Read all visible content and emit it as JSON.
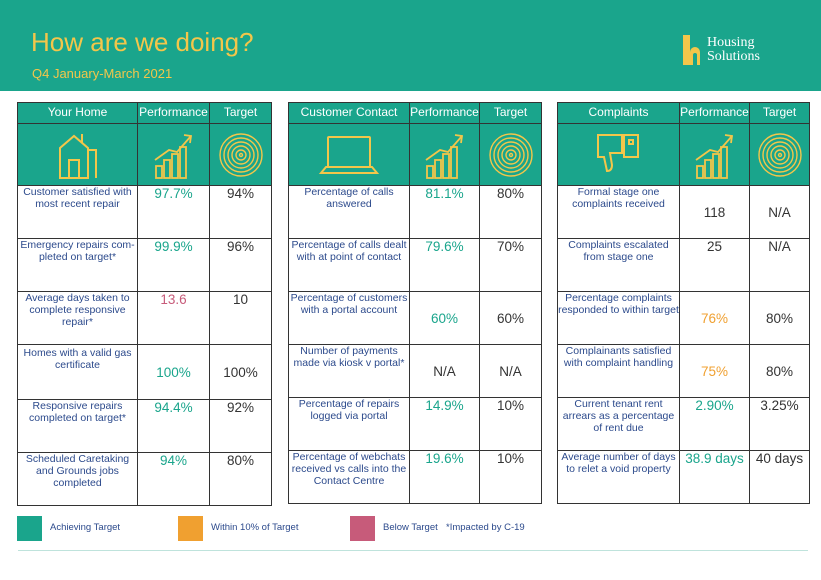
{
  "header": {
    "title": "How are we doing?",
    "subtitle": "Q4 January-March 2021",
    "logo_line1": "Housing",
    "logo_line2": "Solutions"
  },
  "colors": {
    "header_bg": "#1aa58c",
    "title": "#f3c64a",
    "achieving": "#1aa58c",
    "within10": "#f0a030",
    "below": "#c75b7a"
  },
  "tables": {
    "home": {
      "heading": "Your Home",
      "perf_heading": "Performance",
      "target_heading": "Target",
      "icon": "house-icon",
      "rows": [
        {
          "label": "Customer satisfied with most recent repair",
          "performance": "97.7%",
          "target": "94%",
          "status": "achieving"
        },
        {
          "label": "Emergency repairs com-pleted on target*",
          "performance": "99.9%",
          "target": "96%",
          "status": "achieving"
        },
        {
          "label": "Average days taken to complete responsive repair*",
          "performance": "13.6",
          "target": "10",
          "status": "below"
        },
        {
          "label": "Homes with a valid gas certificate",
          "performance": "100%",
          "target": "100%",
          "status": "achieving"
        },
        {
          "label": "Responsive repairs completed on target*",
          "performance": "94.4%",
          "target": "92%",
          "status": "achieving"
        },
        {
          "label": "Scheduled Caretaking and Grounds jobs completed",
          "performance": "94%",
          "target": "80%",
          "status": "achieving"
        }
      ]
    },
    "contact": {
      "heading": "Customer Contact",
      "perf_heading": "Performance",
      "target_heading": "Target",
      "icon": "laptop-icon",
      "rows": [
        {
          "label": "Percentage of calls answered",
          "performance": "81.1%",
          "target": "80%",
          "status": "achieving"
        },
        {
          "label": "Percentage of calls dealt with at point of contact",
          "performance": "79.6%",
          "target": "70%",
          "status": "achieving"
        },
        {
          "label": "Percentage of customers with a portal account",
          "performance": "60%",
          "target": "60%",
          "status": "achieving"
        },
        {
          "label": "Number of payments made via kiosk v portal*",
          "performance": "N/A",
          "target": "N/A",
          "status": "none"
        },
        {
          "label": "Percentage of repairs logged via portal",
          "performance": "14.9%",
          "target": "10%",
          "status": "achieving"
        },
        {
          "label": "Percentage of webchats received vs calls into the Contact Centre",
          "performance": "19.6%",
          "target": "10%",
          "status": "achieving"
        }
      ]
    },
    "complaints": {
      "heading": "Complaints",
      "perf_heading": "Performance",
      "target_heading": "Target",
      "icon": "thumbs-down-icon",
      "rows": [
        {
          "label": "Formal stage one complaints received",
          "performance": "118",
          "target": "N/A",
          "status": "none"
        },
        {
          "label": "Complaints escalated from stage one",
          "performance": "25",
          "target": "N/A",
          "status": "none"
        },
        {
          "label": "Percentage complaints responded to within target",
          "performance": "76%",
          "target": "80%",
          "status": "within10"
        },
        {
          "label": "Complainants satisfied with complaint handling",
          "performance": "75%",
          "target": "80%",
          "status": "within10"
        },
        {
          "label": "Current tenant rent arrears as a percentage of rent due",
          "performance": "2.90%",
          "target": "3.25%",
          "status": "achieving"
        },
        {
          "label": "Average number of days to relet a void property",
          "performance": "38.9 days",
          "target": "40 days",
          "status": "achieving"
        }
      ]
    }
  },
  "legend": {
    "achieving": "Achieving Target",
    "within10": "Within 10% of Target",
    "below": "Below Target",
    "note": "*Impacted by C-19"
  }
}
